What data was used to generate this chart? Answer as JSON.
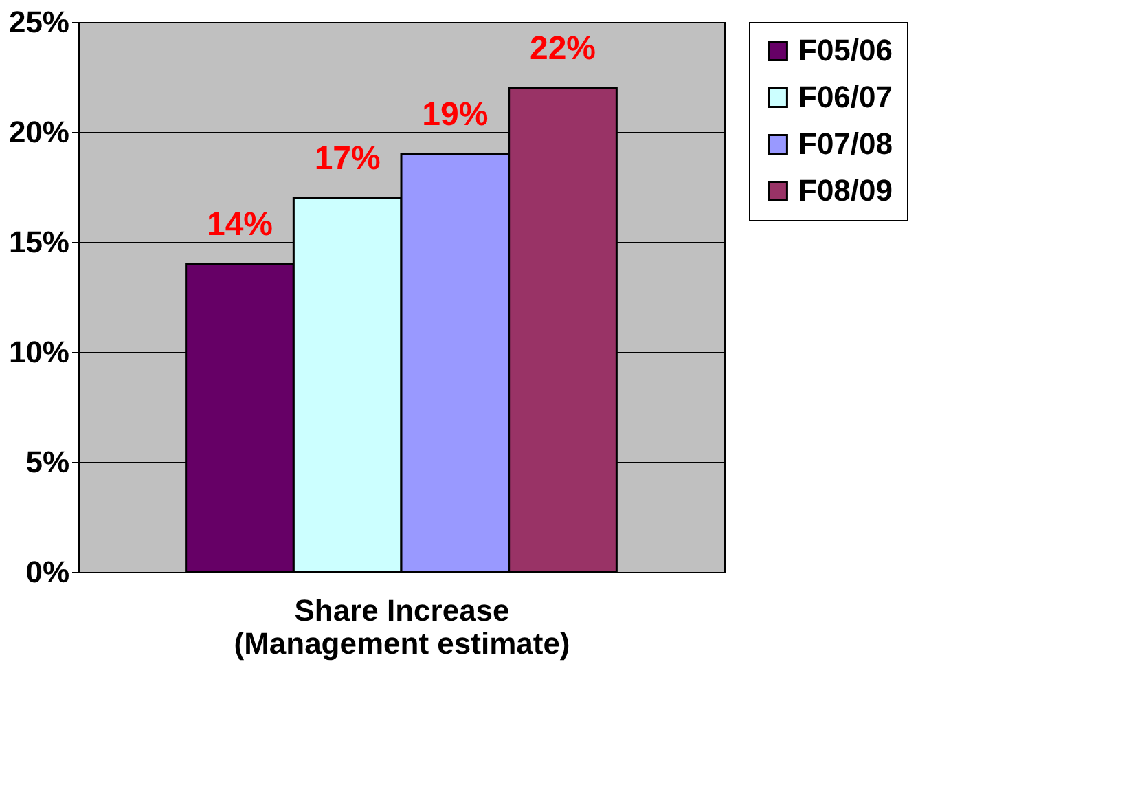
{
  "chart_data": {
    "type": "bar",
    "categories": [
      null
    ],
    "xlabel": "Share Increase (Management estimate)",
    "series": [
      {
        "name": "F05/06",
        "color": "#660066",
        "values": [
          14
        ],
        "value_labels": [
          "14%"
        ]
      },
      {
        "name": "F06/07",
        "color": "#ccffff",
        "values": [
          17
        ],
        "value_labels": [
          "17%"
        ]
      },
      {
        "name": "F07/08",
        "color": "#9999ff",
        "values": [
          19
        ],
        "value_labels": [
          "19%"
        ]
      },
      {
        "name": "F08/09",
        "color": "#993366",
        "values": [
          22
        ],
        "value_labels": [
          "22%"
        ]
      }
    ],
    "ylim": [
      0,
      25
    ],
    "yticks": [
      {
        "value": 0,
        "label": "0%"
      },
      {
        "value": 5,
        "label": "5%"
      },
      {
        "value": 10,
        "label": "10%"
      },
      {
        "value": 15,
        "label": "15%"
      },
      {
        "value": 20,
        "label": "20%"
      },
      {
        "value": 25,
        "label": "25%"
      }
    ],
    "grid": "y",
    "legend": "right"
  }
}
